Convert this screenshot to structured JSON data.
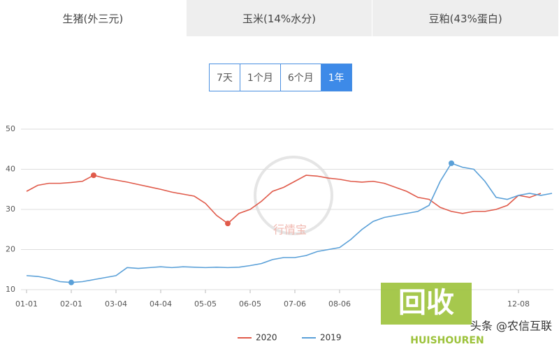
{
  "tabs": [
    "生猪(外三元)",
    "玉米(14%水分)",
    "豆粕(43%蛋白)"
  ],
  "active_tab": 0,
  "range_buttons": [
    "7天",
    "1个月",
    "6个月",
    "1年"
  ],
  "active_button": 3,
  "watermark": {
    "center": "行情宝",
    "logo": "回收",
    "logo_sub": "HUISHOUREN",
    "footer": "头条 @农信互联"
  },
  "chart_data": {
    "type": "line",
    "categories": [
      "01-01",
      null,
      null,
      null,
      "02-01",
      null,
      null,
      null,
      "03-04",
      null,
      null,
      null,
      "04-04",
      null,
      null,
      null,
      "05-05",
      null,
      null,
      null,
      "06-05",
      null,
      null,
      null,
      "07-06",
      null,
      null,
      null,
      "08-06",
      null,
      null,
      null,
      null,
      null,
      null,
      null,
      null,
      null,
      null,
      null,
      null,
      null,
      null,
      null,
      "12-08",
      null,
      null,
      null
    ],
    "series": [
      {
        "name": "2020",
        "color": "#e05a4a",
        "values": [
          34.5,
          36,
          36.5,
          36.5,
          36.7,
          37,
          38.5,
          37.8,
          37.3,
          36.8,
          36.2,
          35.6,
          35,
          34.3,
          33.8,
          33.3,
          31.5,
          28.5,
          26.5,
          29,
          30,
          32,
          34.5,
          35.5,
          37,
          38.5,
          38.3,
          37.8,
          37.5,
          37,
          36.8,
          37,
          36.5,
          35.5,
          34.5,
          33,
          32.5,
          30.5,
          29.5,
          29,
          29.5,
          29.5,
          30,
          31,
          33.5,
          33,
          34,
          null
        ]
      },
      {
        "name": "2019",
        "color": "#5aa0d8",
        "values": [
          13.5,
          13.3,
          12.8,
          12,
          11.8,
          12,
          12.5,
          13,
          13.5,
          15.5,
          15.3,
          15.5,
          15.7,
          15.5,
          15.7,
          15.6,
          15.5,
          15.6,
          15.5,
          15.6,
          16,
          16.5,
          17.5,
          18,
          18,
          18.5,
          19.5,
          20,
          20.5,
          22.5,
          25,
          27,
          28,
          28.5,
          29,
          29.5,
          31,
          37,
          41.5,
          40.5,
          40,
          37,
          33,
          32.5,
          33.5,
          34,
          33.5,
          34
        ]
      }
    ],
    "ylim": [
      10,
      50
    ],
    "yticks": [
      10,
      20,
      30,
      40,
      50
    ],
    "grid": true
  }
}
